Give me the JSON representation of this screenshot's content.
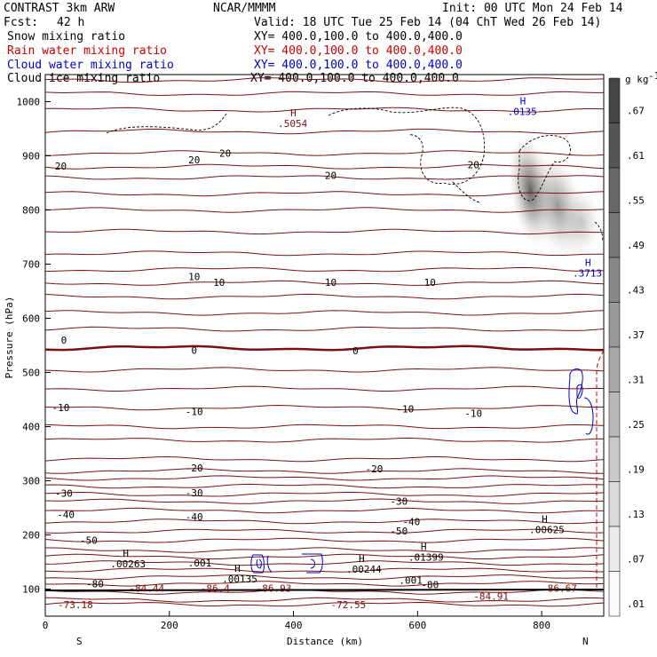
{
  "header": {
    "title_left": "CONTRAST  3km ARW",
    "title_center": "NCAR/MMMM",
    "init": "Init: 00 UTC Mon 24 Feb 14",
    "fcst_label": "Fcst:",
    "fcst_value": "42 h",
    "valid": "Valid: 18 UTC Tue 25 Feb 14 (04 ChT Wed 26 Feb 14)",
    "fields": [
      {
        "name": "Snow mixing ratio",
        "xy": "XY= 400.0,100.0 to 400.0,400.0",
        "color": "#000000"
      },
      {
        "name": "Rain water mixing ratio",
        "xy": "XY= 400.0,100.0 to 400.0,400.0",
        "color": "#cc0000"
      },
      {
        "name": "Cloud water mixing ratio",
        "xy": "XY= 400.0,100.0 to 400.0,400.0",
        "color": "#0000cc"
      },
      {
        "name": "Cloud ice mixing ratio",
        "xy": "XY= 400.0,100.0 to 400.0,400.0",
        "color": "#000000"
      }
    ]
  },
  "chart_data": {
    "type": "contour",
    "xlabel": "Distance (km)",
    "ylabel": "Pressure (hPa)",
    "xlim": [
      0,
      900
    ],
    "ylim": [
      1050,
      50
    ],
    "x_ticks": [
      0,
      200,
      400,
      600,
      800
    ],
    "y_ticks": [
      100,
      200,
      300,
      400,
      500,
      600,
      700,
      800,
      900,
      1000
    ],
    "x_end_labels": {
      "left": "S",
      "right": "N"
    },
    "colorbar": {
      "unit": "g kg",
      "unit_exp": "-1",
      "labels": [
        ".67",
        ".61",
        ".55",
        ".49",
        ".43",
        ".37",
        ".31",
        ".25",
        ".19",
        ".13",
        ".07",
        ".01"
      ]
    },
    "temperature_labels": [
      {
        "x": 30,
        "p": 277,
        "t": "-30"
      },
      {
        "x": 240,
        "p": 278,
        "t": "-30"
      },
      {
        "x": 570,
        "p": 262,
        "t": "-30"
      },
      {
        "x": 33,
        "p": 238,
        "t": "-40"
      },
      {
        "x": 240,
        "p": 234,
        "t": "-40"
      },
      {
        "x": 590,
        "p": 225,
        "t": "-40"
      },
      {
        "x": 70,
        "p": 190,
        "t": "-50"
      },
      {
        "x": 570,
        "p": 207,
        "t": "-50"
      },
      {
        "x": 80,
        "p": 110,
        "t": "-80"
      },
      {
        "x": 620,
        "p": 108,
        "t": "-80"
      },
      {
        "x": 240,
        "p": 324,
        "t": "-20"
      },
      {
        "x": 530,
        "p": 322,
        "t": "-20"
      },
      {
        "x": 25,
        "p": 435,
        "t": "-10"
      },
      {
        "x": 240,
        "p": 428,
        "t": "-10"
      },
      {
        "x": 580,
        "p": 433,
        "t": "-10"
      },
      {
        "x": 690,
        "p": 425,
        "t": "-10"
      },
      {
        "x": 30,
        "p": 560,
        "t": "0"
      },
      {
        "x": 240,
        "p": 541,
        "t": "0"
      },
      {
        "x": 500,
        "p": 540,
        "t": "0"
      },
      {
        "x": 240,
        "p": 677,
        "t": "10"
      },
      {
        "x": 280,
        "p": 666,
        "t": "10"
      },
      {
        "x": 460,
        "p": 666,
        "t": "10"
      },
      {
        "x": 620,
        "p": 666,
        "t": "10"
      },
      {
        "x": 25,
        "p": 881,
        "t": "20"
      },
      {
        "x": 240,
        "p": 893,
        "t": "20"
      },
      {
        "x": 290,
        "p": 905,
        "t": "20"
      },
      {
        "x": 460,
        "p": 864,
        "t": "20"
      },
      {
        "x": 690,
        "p": 884,
        "t": "20"
      }
    ],
    "extrema_labels": [
      {
        "x": 20,
        "p": 71,
        "t": "-73.18"
      },
      {
        "x": 135,
        "p": 102,
        "t": "-84.44"
      },
      {
        "x": 250,
        "p": 102,
        "t": "-86.4"
      },
      {
        "x": 340,
        "p": 102,
        "t": "-86.93"
      },
      {
        "x": 460,
        "p": 71,
        "t": "-72.55"
      },
      {
        "x": 690,
        "p": 87,
        "t": "-84.91"
      },
      {
        "x": 800,
        "p": 102,
        "t": "-86.67"
      }
    ],
    "h_markers": [
      {
        "x": 105,
        "p": 150,
        "t": ".00263"
      },
      {
        "x": 285,
        "p": 122,
        "t": ".00135"
      },
      {
        "x": 485,
        "p": 140,
        "t": ".00244"
      },
      {
        "x": 585,
        "p": 162,
        "t": ".01399"
      },
      {
        "x": 780,
        "p": 213,
        "t": ".00625"
      },
      {
        "x": 850,
        "p": 687,
        "t": ".3713"
      },
      {
        "x": 745,
        "p": 985,
        "t": ".0135"
      },
      {
        "x": 375,
        "p": 963,
        "t": ".5054"
      }
    ],
    "small_labels": [
      {
        "x": 230,
        "p": 148,
        "t": ".001"
      },
      {
        "x": 570,
        "p": 116,
        "t": ".001"
      }
    ],
    "snow_max_g_kg": 0.5
  }
}
